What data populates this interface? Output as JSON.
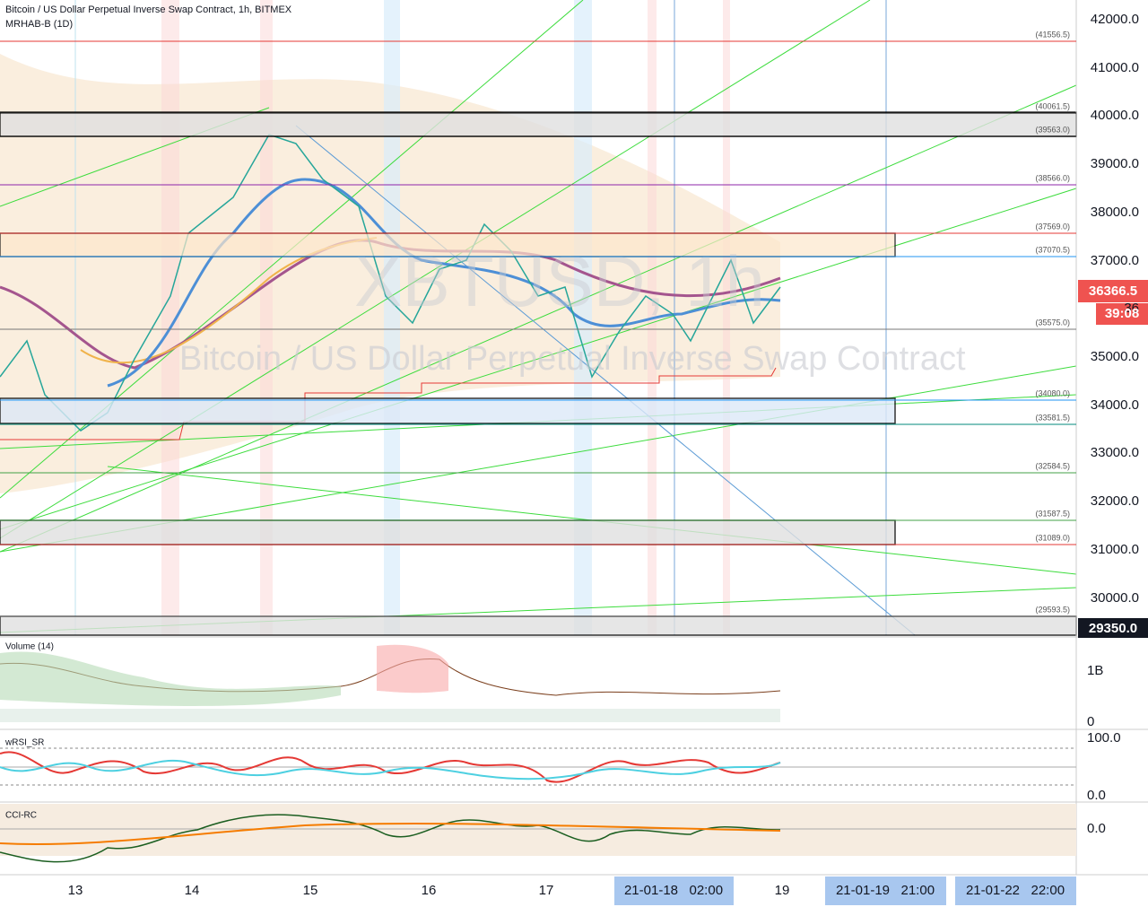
{
  "header": {
    "symbol": "Bitcoin / US Dollar Perpetual Inverse Swap Contract, 1h, BITMEX",
    "indicator": "MRHAB-B (1D)"
  },
  "watermark": {
    "ticker": "XBTUSD, 1h",
    "description": "Bitcoin / US Dollar Perpetual Inverse Swap Contract"
  },
  "price_axis": [
    "42000.0",
    "41000.0",
    "40000.0",
    "39000.0",
    "38000.0",
    "37000.0",
    "35000.0",
    "34000.0",
    "33000.0",
    "32000.0",
    "31000.0",
    "30000.0"
  ],
  "levels": [
    "(41556.5)",
    "(40061.5)",
    "(39563.0)",
    "(38566.0)",
    "(37569.0)",
    "(37070.5)",
    "(35575.0)",
    "(34080.0)",
    "(33581.5)",
    "(32584.5)",
    "(31587.5)",
    "(31089.0)",
    "(29593.5)"
  ],
  "badges": {
    "last_price": "36366.5",
    "countdown": "39:08",
    "cursor_price": "29350.0",
    "hidden_tick": "36"
  },
  "panes": [
    {
      "label": "Volume (14)",
      "axis": [
        "1B",
        "0"
      ]
    },
    {
      "label": "wRSI_SR",
      "axis": [
        "100.0",
        "0.0"
      ]
    },
    {
      "label": "CCI-RC",
      "axis": [
        "0.0"
      ]
    }
  ],
  "time_axis": {
    "days": [
      "13",
      "14",
      "15",
      "16",
      "17",
      "19"
    ],
    "highlights": [
      "21-01-18   02:00",
      "21-01-19   21:00",
      "21-01-22   22:00"
    ]
  }
}
